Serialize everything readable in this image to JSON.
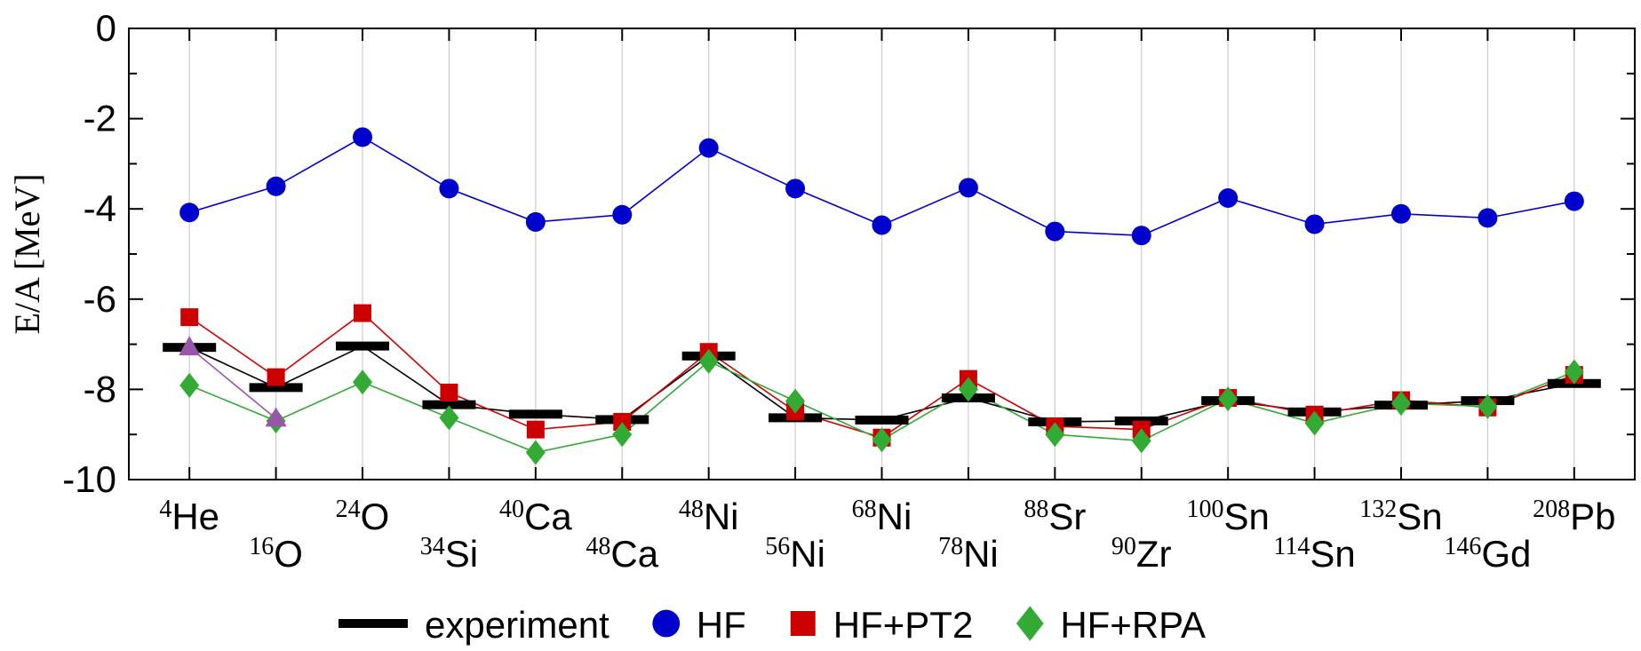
{
  "chart_data": {
    "type": "line",
    "y_label": "E/A  [MeV]",
    "categories": [
      "4He",
      "16O",
      "24O",
      "34Si",
      "40Ca",
      "48Ca",
      "48Ni",
      "56Ni",
      "68Ni",
      "78Ni",
      "88Sr",
      "90Zr",
      "100Sn",
      "114Sn",
      "132Sn",
      "146Gd",
      "208Pb"
    ],
    "ylim": [
      -10,
      0
    ],
    "yticks": [
      0,
      -2,
      -4,
      -6,
      -8,
      -10
    ],
    "grid": true,
    "series": [
      {
        "name": "experiment",
        "color": "#000000",
        "marker": "dash",
        "values": [
          -7.07,
          -7.96,
          -7.04,
          -8.34,
          -8.55,
          -8.67,
          -7.26,
          -8.63,
          -8.68,
          -8.19,
          -8.72,
          -8.7,
          -8.25,
          -8.5,
          -8.35,
          -8.25,
          -7.87
        ]
      },
      {
        "name": "HF",
        "color": "#0000cc",
        "marker": "circle",
        "values": [
          -4.08,
          -3.5,
          -2.41,
          -3.55,
          -4.29,
          -4.13,
          -2.65,
          -3.55,
          -4.36,
          -3.53,
          -4.5,
          -4.59,
          -3.76,
          -4.34,
          -4.11,
          -4.2,
          -3.83
        ]
      },
      {
        "name": "HF+PT2",
        "color": "#cc0000",
        "marker": "square",
        "values": [
          -6.4,
          -7.73,
          -6.31,
          -8.07,
          -8.89,
          -8.72,
          -7.17,
          -8.49,
          -9.07,
          -7.77,
          -8.82,
          -8.89,
          -8.19,
          -8.56,
          -8.24,
          -8.4,
          -7.68
        ]
      },
      {
        "name": "HF+RPA",
        "color": "#33aa33",
        "marker": "diamond",
        "values": [
          -7.91,
          -8.7,
          -7.84,
          -8.63,
          -9.4,
          -9.0,
          -7.38,
          -8.26,
          -9.12,
          -8.0,
          -9.0,
          -9.14,
          -8.21,
          -8.75,
          -8.31,
          -8.38,
          -7.61
        ]
      },
      {
        "color": "#9955aa",
        "marker": "triangle",
        "values": [
          -7.07,
          -8.65,
          null,
          null,
          null,
          null,
          null,
          null,
          null,
          null,
          null,
          null,
          null,
          null,
          null,
          null,
          null
        ]
      }
    ]
  }
}
